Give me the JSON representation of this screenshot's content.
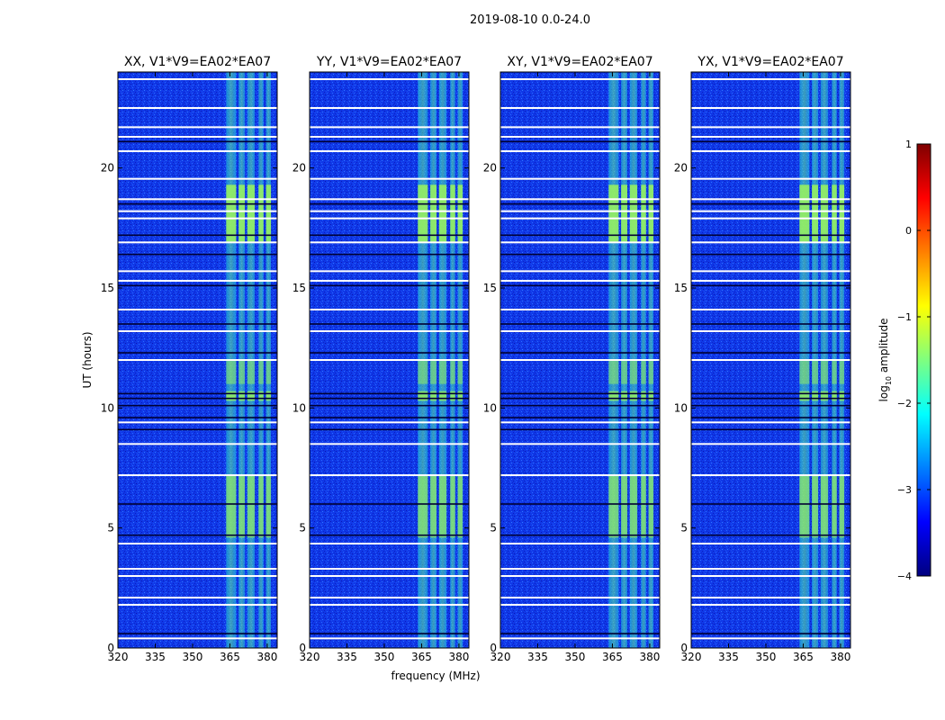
{
  "figure_title": "2019-08-10 0.0-24.0",
  "shared_xlabel": "frequency (MHz)",
  "shared_ylabel": "UT (hours)",
  "colorbar": {
    "label_prefix": "log",
    "label_subscript": "10",
    "label_suffix": " amplitude",
    "range": [
      -4,
      1
    ],
    "ticks": [
      "1",
      "0",
      "−1",
      "−2",
      "−3",
      "−4"
    ],
    "tick_values": [
      1,
      0,
      -1,
      -2,
      -3,
      -4
    ],
    "colormap": "jet"
  },
  "chart_data": [
    {
      "type": "heatmap",
      "title": "XX, V1*V9=EA02*EA07",
      "xlabel": "frequency (MHz)",
      "ylabel": "UT (hours)",
      "xlim": [
        320,
        384
      ],
      "ylim": [
        0,
        24
      ],
      "xticks": [
        "320",
        "335",
        "350",
        "365",
        "380"
      ],
      "xtick_values": [
        320,
        335,
        350,
        365,
        380
      ],
      "yticks": [
        "0",
        "5",
        "10",
        "15",
        "20"
      ],
      "ytick_values": [
        0,
        5,
        10,
        15,
        20
      ]
    },
    {
      "type": "heatmap",
      "title": "YY, V1*V9=EA02*EA07",
      "xlabel": "frequency (MHz)",
      "ylabel": "UT (hours)",
      "xlim": [
        320,
        384
      ],
      "ylim": [
        0,
        24
      ],
      "xticks": [
        "320",
        "335",
        "350",
        "365",
        "380"
      ],
      "xtick_values": [
        320,
        335,
        350,
        365,
        380
      ],
      "yticks": [
        "0",
        "5",
        "10",
        "15",
        "20"
      ],
      "ytick_values": [
        0,
        5,
        10,
        15,
        20
      ]
    },
    {
      "type": "heatmap",
      "title": "XY, V1*V9=EA02*EA07",
      "xlabel": "frequency (MHz)",
      "ylabel": "UT (hours)",
      "xlim": [
        320,
        384
      ],
      "ylim": [
        0,
        24
      ],
      "xticks": [
        "320",
        "335",
        "350",
        "365",
        "380"
      ],
      "xtick_values": [
        320,
        335,
        350,
        365,
        380
      ],
      "yticks": [
        "0",
        "5",
        "10",
        "15",
        "20"
      ],
      "ytick_values": [
        0,
        5,
        10,
        15,
        20
      ]
    },
    {
      "type": "heatmap",
      "title": "YX, V1*V9=EA02*EA07",
      "xlabel": "frequency (MHz)",
      "ylabel": "UT (hours)",
      "xlim": [
        320,
        384
      ],
      "ylim": [
        0,
        24
      ],
      "xticks": [
        "320",
        "335",
        "350",
        "365",
        "380"
      ],
      "xtick_values": [
        320,
        335,
        350,
        365,
        380
      ],
      "yticks": [
        "0",
        "5",
        "10",
        "15",
        "20"
      ],
      "ytick_values": [
        0,
        5,
        10,
        15,
        20
      ]
    }
  ],
  "rfi_bands_mhz": [
    [
      363.5,
      367.5
    ],
    [
      368.5,
      371
    ],
    [
      372,
      375
    ],
    [
      376.5,
      378.5
    ],
    [
      379.5,
      381.5
    ]
  ],
  "flagged_hours_white": [
    0.4,
    1.8,
    2.1,
    3.0,
    3.3,
    4.35,
    7.2,
    8.5,
    9.4,
    12.0,
    13.2,
    14.1,
    15.3,
    15.7,
    16.9,
    17.9,
    18.2,
    18.7,
    19.55,
    20.7,
    21.3,
    21.7,
    22.5,
    23.7
  ],
  "flagged_hours_dark": [
    0.6,
    4.7,
    6.0,
    9.1,
    9.6,
    10.1,
    10.4,
    10.6,
    12.3,
    13.5,
    15.1,
    16.4,
    17.2,
    18.5,
    21.1
  ]
}
